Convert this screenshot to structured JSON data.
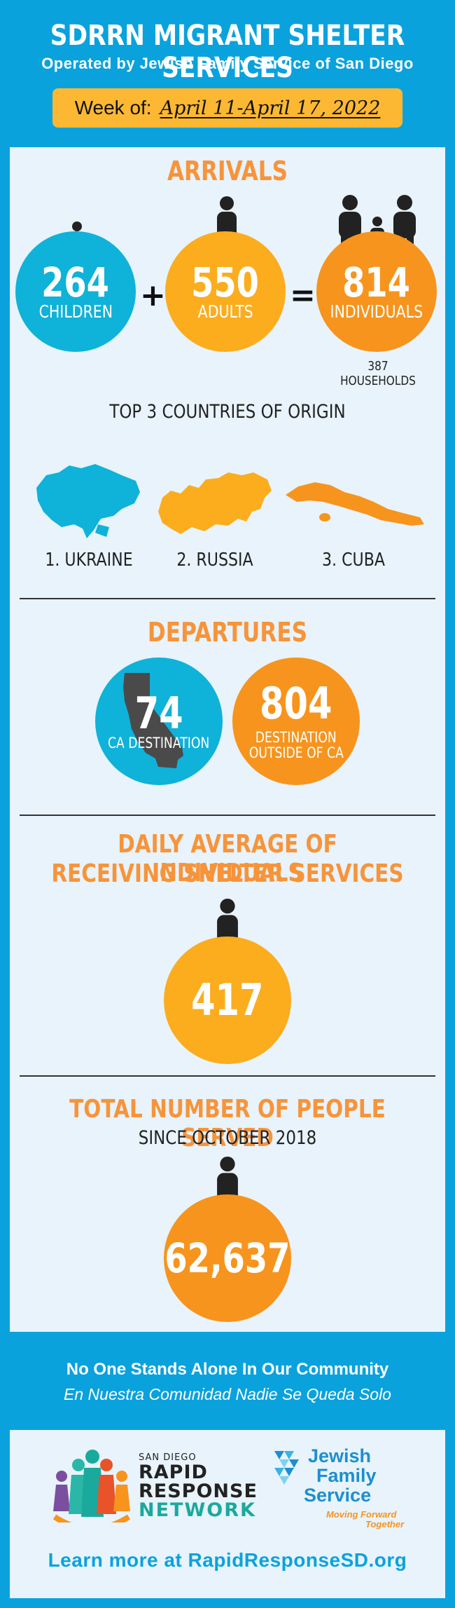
{
  "header": {
    "title": "SDRRN MIGRANT SHELTER SERVICES",
    "subtitle": "Operated by Jewish Family Service of San Diego",
    "week_label": "Week of:",
    "week_dates": "April 11-April 17, 2022"
  },
  "arrivals": {
    "title": "ARRIVALS",
    "children": {
      "value": "264",
      "label": "CHILDREN"
    },
    "adults": {
      "value": "550",
      "label": "ADULTS"
    },
    "individuals": {
      "value": "814",
      "label": "INDIVIDUALS"
    },
    "plus": "+",
    "equals": "=",
    "households": "387 HOUSEHOLDS"
  },
  "countries": {
    "title": "TOP 3 COUNTRIES OF ORIGIN",
    "items": [
      "1. UKRAINE",
      "2. RUSSIA",
      "3. CUBA"
    ]
  },
  "departures": {
    "title": "DEPARTURES",
    "ca": {
      "value": "74",
      "label": "CA DESTINATION"
    },
    "outside": {
      "value": "804",
      "label_1": "DESTINATION",
      "label_2": "OUTSIDE OF CA"
    }
  },
  "daily": {
    "title_1": "DAILY AVERAGE OF INDIVIDUALS",
    "title_2": "RECEIVING SHELTER SERVICES",
    "value": "417"
  },
  "total": {
    "title": "TOTAL NUMBER OF PEOPLE SERVED",
    "subtitle": "SINCE OCTOBER 2018",
    "value": "62,637"
  },
  "footer": {
    "line_1": "No One Stands Alone In Our Community",
    "line_2": "En Nuestra Comunidad Nadie Se Queda Solo",
    "rrn_small": "SAN DIEGO",
    "rrn_1": "RAPID",
    "rrn_2": "RESPONSE",
    "rrn_3": "NETWORK",
    "jfs_1": "Jewish",
    "jfs_2": "Family",
    "jfs_3": "Service",
    "jfs_tag_1": "Moving Forward",
    "jfs_tag_2": "Together",
    "learn_more": "Learn more at RapidResponseSD.org"
  },
  "colors": {
    "brand_blue": "#0aa2dd",
    "orange": "#f7943a",
    "yellow": "#fbad1e",
    "cyan": "#0fb2d8"
  }
}
